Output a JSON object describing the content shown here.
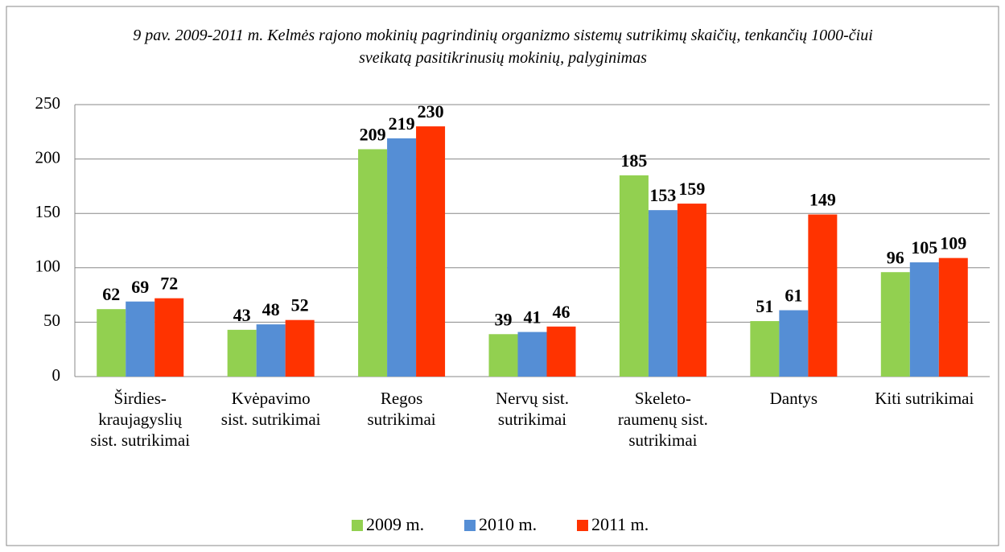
{
  "chart_data": {
    "type": "bar",
    "title": "9 pav. 2009-2011 m. Kelmės rajono mokinių pagrindinių organizmo sistemų sutrikimų skaičių, tenkančių 1000-čiui sveikatą pasitikrinusių mokinių, palyginimas",
    "categories": [
      "Širdies-kraujagyslių sist. sutrikimai",
      "Kvėpavimo sist. sutrikimai",
      "Regos sutrikimai",
      "Nervų sist. sutrikimai",
      "Skeleto-raumenų sist. sutrikimai",
      "Dantys",
      "Kiti sutrikimai"
    ],
    "series": [
      {
        "name": "2009 m.",
        "color": "#92d050",
        "values": [
          62,
          43,
          209,
          39,
          185,
          51,
          96
        ]
      },
      {
        "name": "2010 m.",
        "color": "#558ed5",
        "values": [
          69,
          48,
          219,
          41,
          153,
          61,
          105
        ]
      },
      {
        "name": "2011 m.",
        "color": "#ff3300",
        "values": [
          72,
          52,
          230,
          46,
          159,
          149,
          109
        ]
      }
    ],
    "ylim": [
      0,
      250
    ],
    "yticks": [
      0,
      50,
      100,
      150,
      200,
      250
    ],
    "grid": true,
    "legend": "bottom"
  }
}
